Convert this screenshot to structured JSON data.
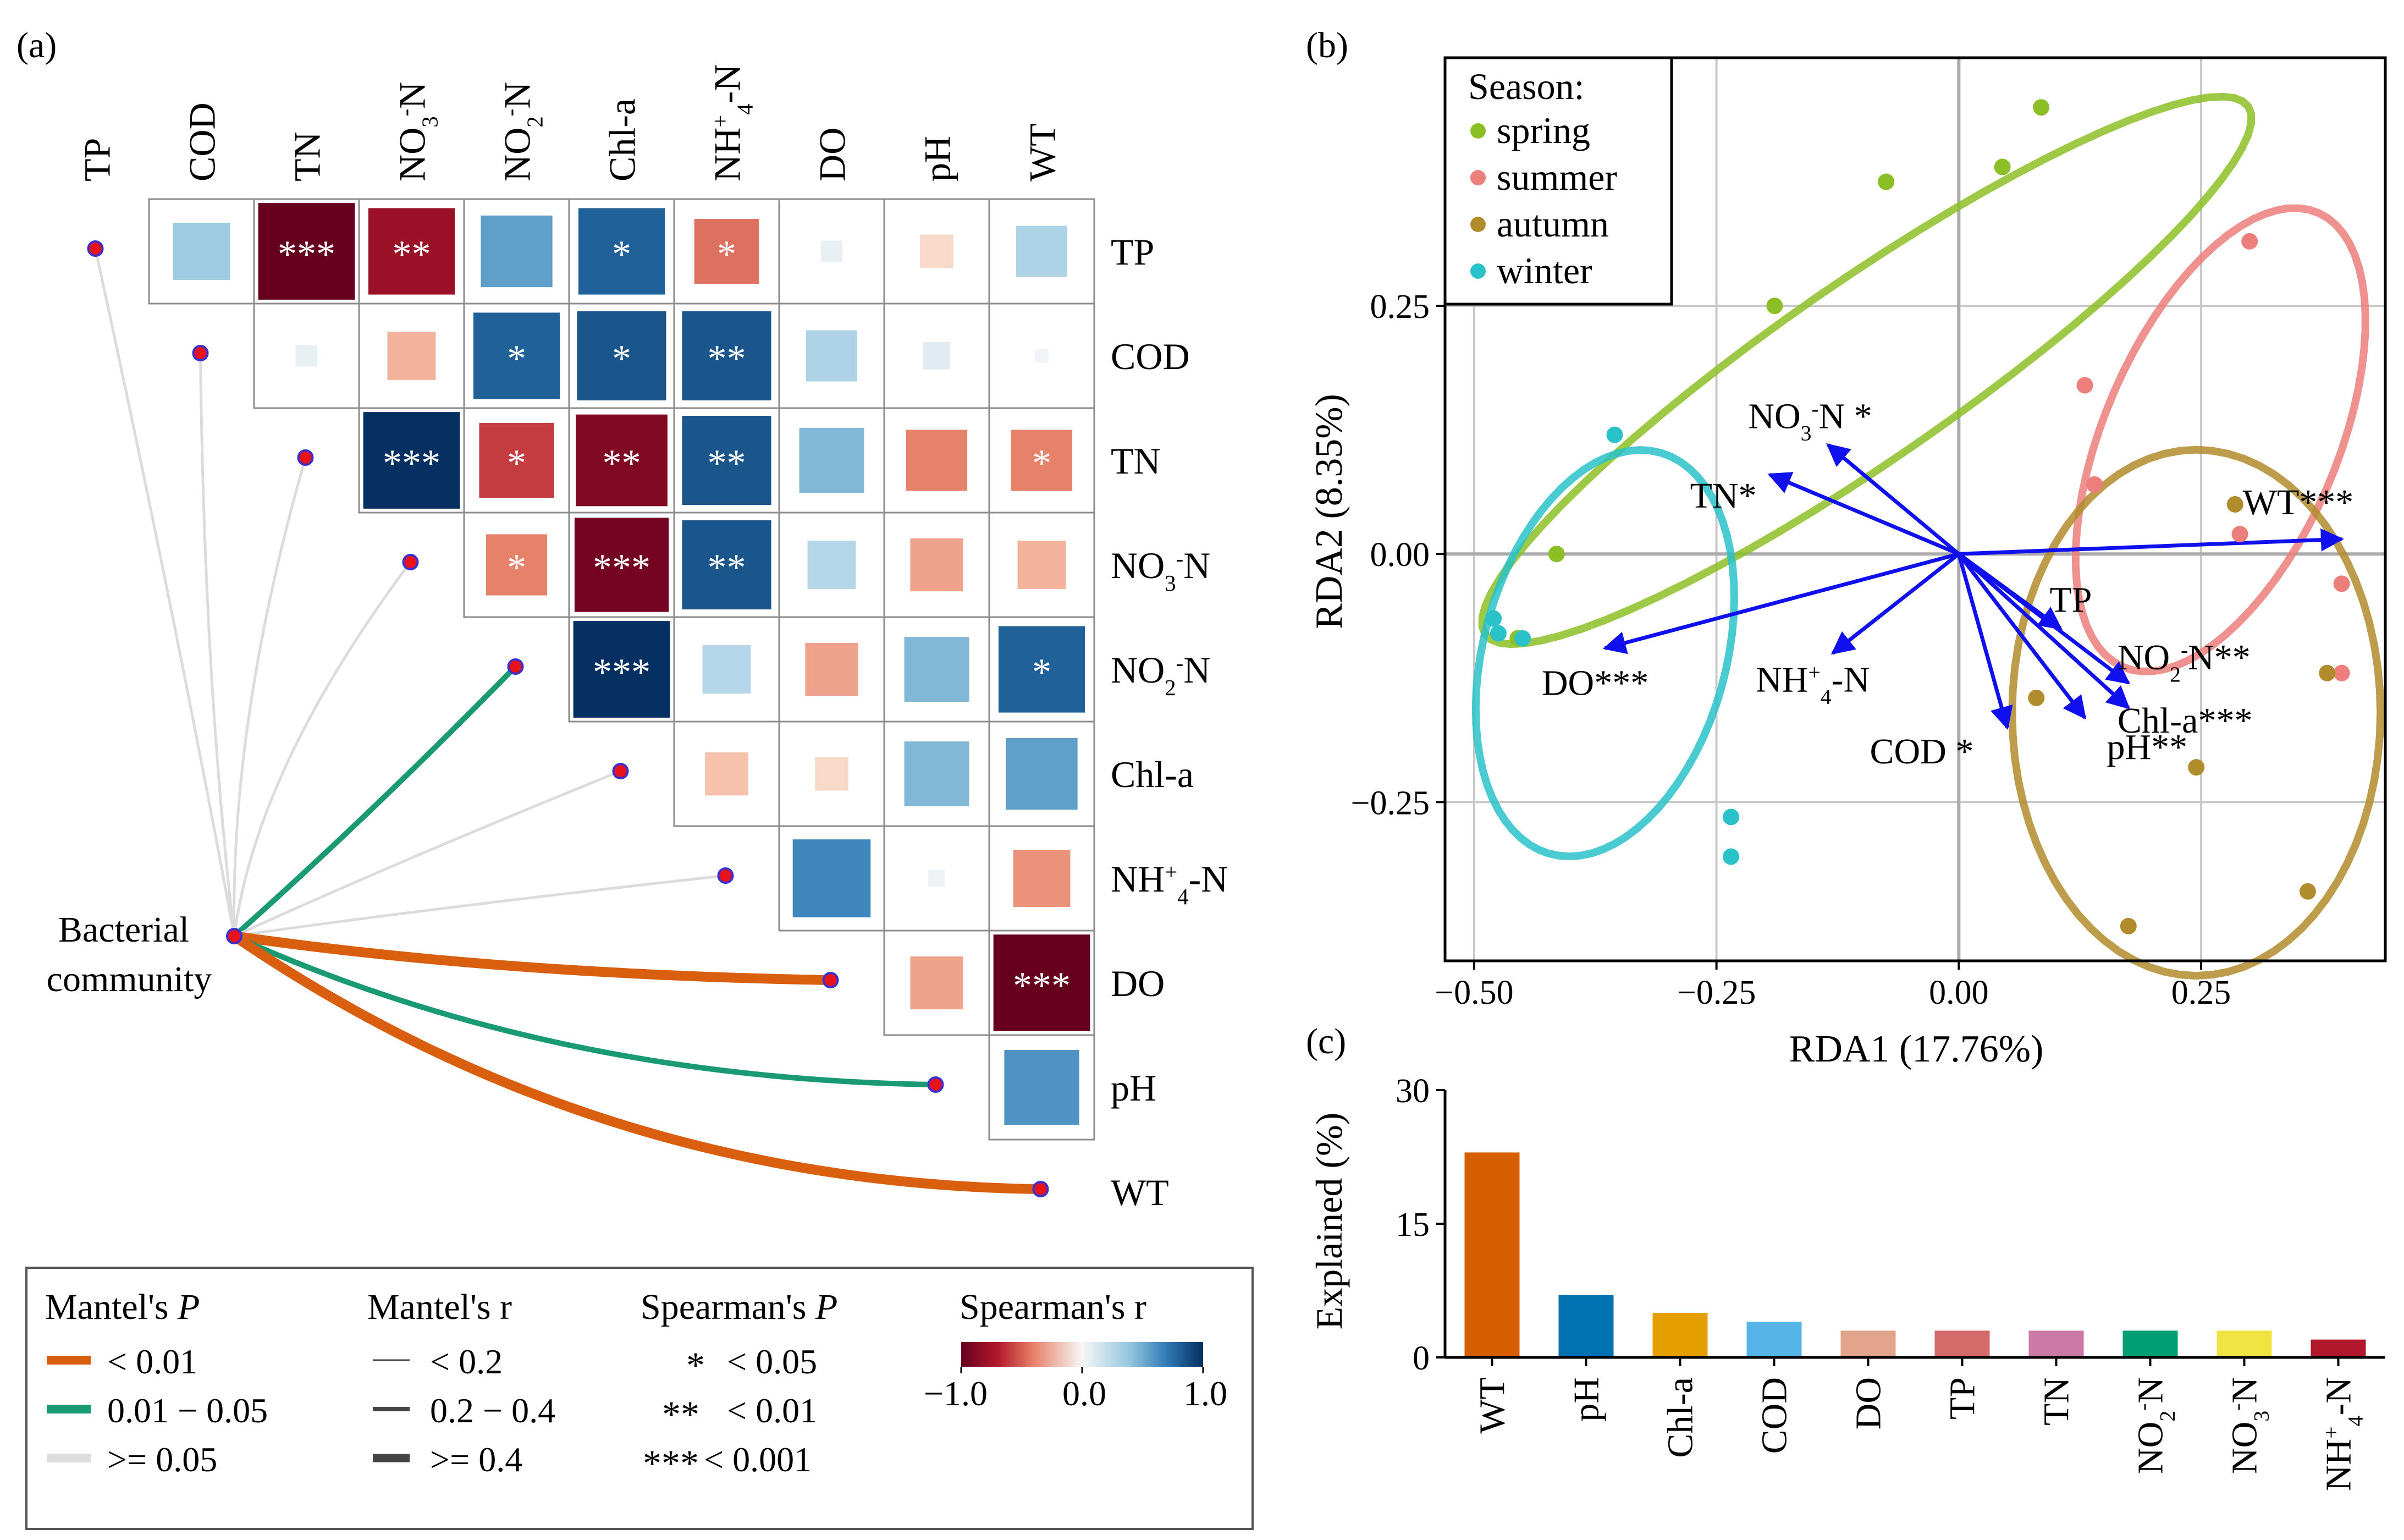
{
  "panel_labels": {
    "a": "(a)",
    "b": "(b)",
    "c": "(c)"
  },
  "colors": {
    "mantel_lt001": "#d95f0e",
    "mantel_001_005": "#1a9a72",
    "mantel_ge005": "#dcdcdc",
    "node_fill": "#e8121a",
    "node_stroke": "#3a2fd0",
    "arrow": "#1010ee",
    "spring": "#8cbf26",
    "summer": "#ec7f7b",
    "autumn": "#b18c2c",
    "winter": "#29c2c9",
    "grid": "#c8c8c8"
  },
  "chart_data": [
    {
      "type": "heatmap",
      "panel": "a",
      "variables": [
        "TP",
        "COD",
        "TN",
        "NO3-N",
        "NO2-N",
        "Chl-a",
        "NH4+-N",
        "DO",
        "pH",
        "WT"
      ],
      "spearman_r_upper": [
        [
          0.35,
          -1.0,
          -0.8,
          0.55,
          0.8,
          -0.45,
          0.05,
          -0.12,
          0.28,
          null
        ],
        [
          0.05,
          -0.25,
          0.8,
          0.85,
          0.85,
          0.28,
          0.08,
          0.02,
          null,
          null
        ],
        [
          1.0,
          -0.6,
          -0.9,
          0.85,
          0.45,
          -0.4,
          -0.4,
          null,
          null,
          null
        ],
        [
          -0.4,
          -0.95,
          0.85,
          0.25,
          -0.3,
          -0.25,
          null,
          null,
          null,
          null
        ],
        [
          1.0,
          0.25,
          -0.3,
          0.45,
          0.8,
          null,
          null,
          null,
          null,
          null
        ],
        [
          -0.2,
          -0.12,
          0.45,
          0.55,
          null,
          null,
          null,
          null,
          null,
          null
        ],
        [
          0.65,
          0.03,
          -0.35,
          null,
          null,
          null,
          null,
          null,
          null,
          null
        ],
        [
          -0.3,
          -1.0,
          null,
          null,
          null,
          null,
          null,
          null,
          null,
          null
        ],
        [
          0.6,
          null,
          null,
          null,
          null,
          null,
          null,
          null,
          null,
          null
        ]
      ],
      "significance_upper": [
        [
          "",
          "***",
          "**",
          "",
          "*",
          "*",
          "",
          "",
          "",
          null
        ],
        [
          "",
          "",
          "*",
          "*",
          "**",
          "",
          "",
          "",
          null,
          null
        ],
        [
          "***",
          "*",
          "**",
          "**",
          "",
          "",
          "*",
          null,
          null,
          null
        ],
        [
          "*",
          "***",
          "**",
          "",
          "",
          "",
          null,
          null,
          null,
          null
        ],
        [
          "***",
          "",
          "",
          "",
          "*",
          null,
          null,
          null,
          null,
          null
        ],
        [
          "",
          "",
          "",
          "",
          null,
          null,
          null,
          null,
          null,
          null
        ],
        [
          "",
          "",
          "",
          null,
          null,
          null,
          null,
          null,
          null,
          null
        ],
        [
          "",
          "***",
          null,
          null,
          null,
          null,
          null,
          null,
          null,
          null
        ],
        [
          "",
          null,
          null,
          null,
          null,
          null,
          null,
          null,
          null,
          null
        ]
      ],
      "mantel_tests": [
        {
          "variable": "TP",
          "p_class": ">= 0.05",
          "r_class": "< 0.2"
        },
        {
          "variable": "COD",
          "p_class": ">= 0.05",
          "r_class": "< 0.2"
        },
        {
          "variable": "TN",
          "p_class": ">= 0.05",
          "r_class": "< 0.2"
        },
        {
          "variable": "NO3-N",
          "p_class": ">= 0.05",
          "r_class": "< 0.2"
        },
        {
          "variable": "NO2-N",
          "p_class": "0.01 - 0.05",
          "r_class": "0.2 - 0.4"
        },
        {
          "variable": "Chl-a",
          "p_class": ">= 0.05",
          "r_class": "< 0.2"
        },
        {
          "variable": "NH4+-N",
          "p_class": ">= 0.05",
          "r_class": "< 0.2"
        },
        {
          "variable": "DO",
          "p_class": "< 0.01",
          "r_class": ">= 0.4"
        },
        {
          "variable": "pH",
          "p_class": "0.01 - 0.05",
          "r_class": "0.2 - 0.4"
        },
        {
          "variable": "WT",
          "p_class": "< 0.01",
          "r_class": ">= 0.4"
        }
      ],
      "hub_label_line1": "Bacterial",
      "hub_label_line2": "community",
      "legend": {
        "mantel_p": {
          "title": "Mantel's",
          "title_italic": "P",
          "items": [
            "< 0.01",
            "0.01 − 0.05",
            ">= 0.05"
          ]
        },
        "mantel_r": {
          "title": "Mantel's r",
          "items": [
            "< 0.2",
            "0.2 − 0.4",
            ">= 0.4"
          ]
        },
        "spearman_p": {
          "title": "Spearman's",
          "title_italic": "P",
          "items": [
            {
              "stars": "*",
              "text": "< 0.05"
            },
            {
              "stars": "**",
              "text": "< 0.01"
            },
            {
              "stars": "***",
              "text": "< 0.001"
            }
          ]
        },
        "spearman_r": {
          "title": "Spearman's r",
          "min_label": "−1.0",
          "mid_label": "0.0",
          "max_label": "1.0",
          "range": [
            -1,
            1
          ]
        }
      }
    },
    {
      "type": "scatter",
      "panel": "b",
      "xlabel": "RDA1 (17.76%)",
      "ylabel": "RDA2 (8.35%)",
      "xlim": [
        -0.53,
        0.44
      ],
      "ylim": [
        -0.41,
        0.5
      ],
      "xticks": [
        -0.5,
        -0.25,
        0.0,
        0.25
      ],
      "xtick_labels": [
        "−0.50",
        "−0.25",
        "0.00",
        "0.25"
      ],
      "yticks": [
        -0.25,
        0.0,
        0.25
      ],
      "ytick_labels": [
        "−0.25",
        "0.00",
        "0.25"
      ],
      "legend_title": "Season:",
      "series": [
        {
          "name": "spring",
          "points": [
            [
              0.085,
              0.45
            ],
            [
              0.045,
              0.39
            ],
            [
              -0.075,
              0.375
            ],
            [
              -0.19,
              0.25
            ],
            [
              -0.415,
              0.0
            ],
            [
              -0.455,
              -0.085
            ]
          ],
          "ellipse": {
            "cx": -0.095,
            "cy": 0.185,
            "rx": 0.475,
            "ry": 0.09,
            "angle_deg": 34
          }
        },
        {
          "name": "summer",
          "points": [
            [
              0.3,
              0.315
            ],
            [
              0.13,
              0.17
            ],
            [
              0.14,
              0.07
            ],
            [
              0.29,
              0.02
            ],
            [
              0.395,
              -0.03
            ],
            [
              0.395,
              -0.12
            ]
          ],
          "ellipse": {
            "cx": 0.27,
            "cy": 0.115,
            "rx": 0.25,
            "ry": 0.12,
            "angle_deg": 66
          }
        },
        {
          "name": "autumn",
          "points": [
            [
              0.285,
              0.05
            ],
            [
              0.38,
              -0.12
            ],
            [
              0.08,
              -0.145
            ],
            [
              0.245,
              -0.215
            ],
            [
              0.36,
              -0.34
            ],
            [
              0.175,
              -0.375
            ]
          ],
          "ellipse": {
            "cx": 0.245,
            "cy": -0.16,
            "rx": 0.19,
            "ry": 0.265,
            "angle_deg": 0
          }
        },
        {
          "name": "winter",
          "points": [
            [
              -0.355,
              0.12
            ],
            [
              -0.48,
              -0.065
            ],
            [
              -0.475,
              -0.08
            ],
            [
              -0.45,
              -0.085
            ],
            [
              -0.235,
              -0.265
            ],
            [
              -0.235,
              -0.305
            ]
          ],
          "ellipse": {
            "cx": -0.365,
            "cy": -0.1,
            "rx": 0.21,
            "ry": 0.125,
            "angle_deg": 74
          }
        }
      ],
      "arrows": [
        {
          "label": "NO3-N *",
          "x": -0.135,
          "y": 0.11
        },
        {
          "label": "TN*",
          "x": -0.195,
          "y": 0.08
        },
        {
          "label": "WT***",
          "x": 0.395,
          "y": 0.015
        },
        {
          "label": "DO***",
          "x": -0.365,
          "y": -0.095
        },
        {
          "label": "NH4+-N",
          "x": -0.13,
          "y": -0.1
        },
        {
          "label": "TP",
          "x": 0.105,
          "y": -0.075
        },
        {
          "label": "NO2-N**",
          "x": 0.175,
          "y": -0.13
        },
        {
          "label": "Chl-a***",
          "x": 0.175,
          "y": -0.155
        },
        {
          "label": "COD *",
          "x": 0.05,
          "y": -0.175
        },
        {
          "label": "pH**",
          "x": 0.13,
          "y": -0.165
        }
      ]
    },
    {
      "type": "bar",
      "panel": "c",
      "ylabel": "Explained (%)",
      "ylim": [
        0,
        30
      ],
      "yticks": [
        0,
        15,
        30
      ],
      "categories": [
        "WT",
        "pH",
        "Chl-a",
        "COD",
        "DO",
        "TP",
        "TN",
        "NO2-N",
        "NO3-N",
        "NH4+-N"
      ],
      "values": [
        23,
        7,
        5,
        4,
        3,
        3,
        3,
        3,
        3,
        2
      ],
      "bar_colors": [
        "#d55e00",
        "#0072b2",
        "#e69f00",
        "#56b4e9",
        "#e3a48c",
        "#d46a6a",
        "#cc79a7",
        "#009e73",
        "#f0e442",
        "#b2182b"
      ]
    }
  ]
}
